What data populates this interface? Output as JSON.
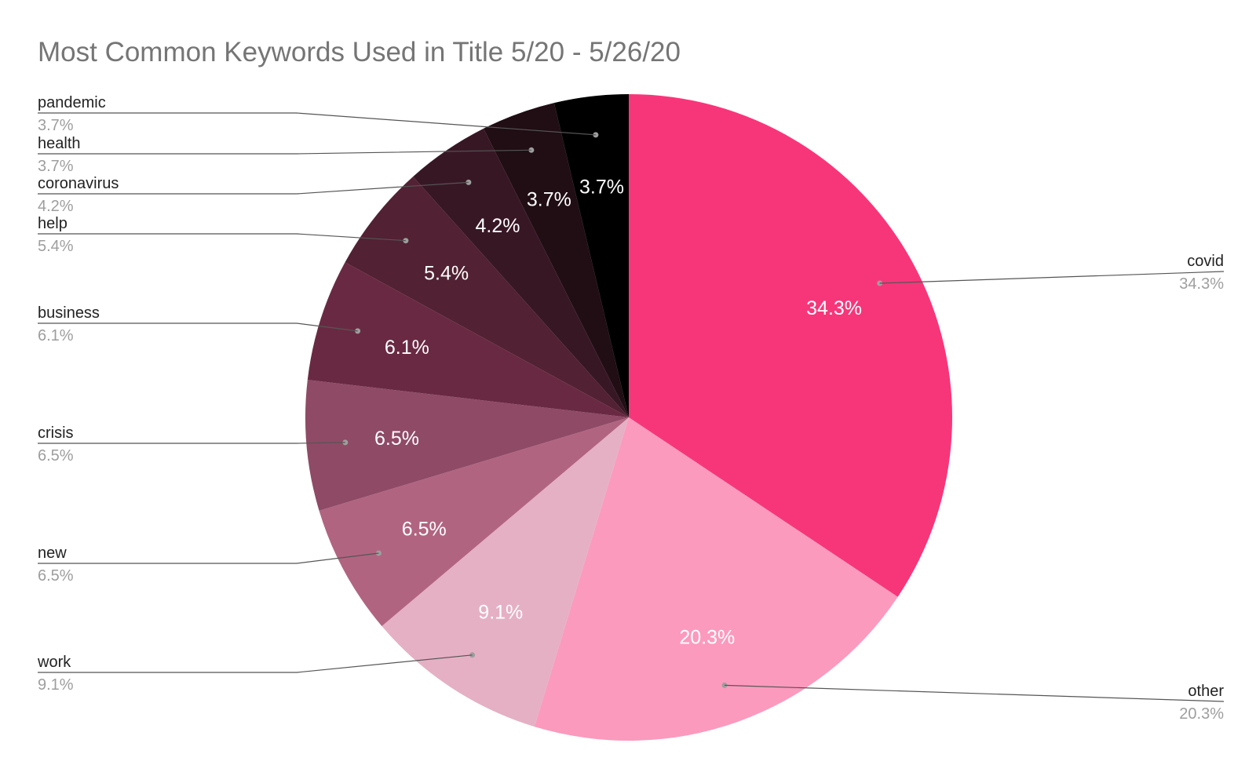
{
  "chart_data": {
    "type": "pie",
    "title": "Most Common Keywords Used in Title 5/20 - 5/26/20",
    "start_angle_deg": 0,
    "direction": "clockwise",
    "slices": [
      {
        "name": "covid",
        "value": 34.3,
        "label": "34.3%",
        "color": "#f7367a"
      },
      {
        "name": "other",
        "value": 20.3,
        "label": "20.3%",
        "color": "#fb9abd"
      },
      {
        "name": "work",
        "value": 9.1,
        "label": "9.1%",
        "color": "#e5b0c4"
      },
      {
        "name": "new",
        "value": 6.5,
        "label": "6.5%",
        "color": "#b16480"
      },
      {
        "name": "crisis",
        "value": 6.5,
        "label": "6.5%",
        "color": "#8f4a66"
      },
      {
        "name": "business",
        "value": 6.1,
        "label": "6.1%",
        "color": "#6a2942"
      },
      {
        "name": "help",
        "value": 5.4,
        "label": "5.4%",
        "color": "#522133"
      },
      {
        "name": "coronavirus",
        "value": 4.2,
        "label": "4.2%",
        "color": "#381725"
      },
      {
        "name": "health",
        "value": 3.7,
        "label": "3.7%",
        "color": "#200e14"
      },
      {
        "name": "pandemic",
        "value": 3.7,
        "label": "3.7%",
        "color": "#000000"
      }
    ],
    "legend": "callouts"
  }
}
